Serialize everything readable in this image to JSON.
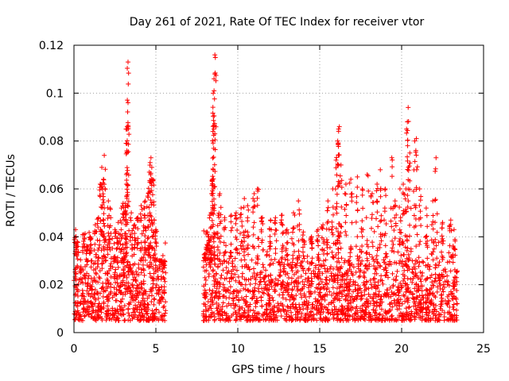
{
  "chart_data": {
    "type": "scatter",
    "title": "Day 261 of 2021, Rate Of TEC Index for receiver vtor",
    "xlabel": "GPS time / hours",
    "ylabel": "ROTI / TECUs",
    "xlim": [
      0,
      25
    ],
    "ylim": [
      0,
      0.12
    ],
    "x_ticks": [
      "0",
      "5",
      "10",
      "15",
      "20",
      "25"
    ],
    "y_ticks": [
      "0",
      "0.02",
      "0.04",
      "0.06",
      "0.08",
      "0.1",
      "0.12"
    ],
    "grid": true,
    "marker": "+",
    "series_color": "#ff0000",
    "data_gaps_hours": [
      [
        5.6,
        7.9
      ]
    ],
    "x_range_of_data": [
      0.0,
      23.4
    ],
    "points": [
      [
        0.1,
        0.043
      ],
      [
        0.2,
        0.038
      ],
      [
        0.6,
        0.041
      ],
      [
        0.8,
        0.036
      ],
      [
        1.0,
        0.04
      ],
      [
        1.3,
        0.045
      ],
      [
        1.5,
        0.048
      ],
      [
        1.6,
        0.062
      ],
      [
        1.7,
        0.069
      ],
      [
        1.8,
        0.064
      ],
      [
        1.75,
        0.06
      ],
      [
        1.85,
        0.074
      ],
      [
        2.1,
        0.055
      ],
      [
        2.2,
        0.052
      ],
      [
        2.5,
        0.043
      ],
      [
        2.7,
        0.046
      ],
      [
        2.9,
        0.052
      ],
      [
        3.0,
        0.054
      ],
      [
        3.1,
        0.05
      ],
      [
        3.2,
        0.062
      ],
      [
        3.2,
        0.066
      ],
      [
        3.25,
        0.085
      ],
      [
        3.25,
        0.086
      ],
      [
        3.3,
        0.096
      ],
      [
        3.3,
        0.113
      ],
      [
        3.5,
        0.05
      ],
      [
        3.7,
        0.045
      ],
      [
        3.9,
        0.048
      ],
      [
        4.1,
        0.053
      ],
      [
        4.3,
        0.052
      ],
      [
        4.35,
        0.055
      ],
      [
        4.5,
        0.057
      ],
      [
        4.6,
        0.067
      ],
      [
        4.65,
        0.071
      ],
      [
        4.7,
        0.073
      ],
      [
        4.75,
        0.069
      ],
      [
        4.8,
        0.064
      ],
      [
        4.9,
        0.047
      ],
      [
        5.0,
        0.043
      ],
      [
        5.3,
        0.03
      ],
      [
        5.5,
        0.028
      ],
      [
        8.0,
        0.033
      ],
      [
        8.1,
        0.042
      ],
      [
        8.2,
        0.04
      ],
      [
        8.3,
        0.049
      ],
      [
        8.4,
        0.058
      ],
      [
        8.45,
        0.064
      ],
      [
        8.5,
        0.068
      ],
      [
        8.5,
        0.1
      ],
      [
        8.55,
        0.101
      ],
      [
        8.55,
        0.106
      ],
      [
        8.6,
        0.108
      ],
      [
        8.6,
        0.116
      ],
      [
        8.8,
        0.049
      ],
      [
        8.9,
        0.058
      ],
      [
        9.2,
        0.048
      ],
      [
        9.6,
        0.049
      ],
      [
        9.9,
        0.05
      ],
      [
        10.2,
        0.052
      ],
      [
        10.4,
        0.056
      ],
      [
        10.6,
        0.053
      ],
      [
        11.0,
        0.058
      ],
      [
        11.2,
        0.06
      ],
      [
        11.5,
        0.048
      ],
      [
        12.0,
        0.047
      ],
      [
        12.3,
        0.048
      ],
      [
        12.7,
        0.049
      ],
      [
        13.0,
        0.043
      ],
      [
        13.4,
        0.05
      ],
      [
        13.7,
        0.055
      ],
      [
        14.0,
        0.042
      ],
      [
        14.5,
        0.04
      ],
      [
        14.9,
        0.043
      ],
      [
        15.2,
        0.045
      ],
      [
        15.5,
        0.055
      ],
      [
        15.8,
        0.06
      ],
      [
        16.0,
        0.072
      ],
      [
        16.1,
        0.08
      ],
      [
        16.15,
        0.085
      ],
      [
        16.2,
        0.086
      ],
      [
        16.3,
        0.07
      ],
      [
        16.6,
        0.062
      ],
      [
        16.9,
        0.064
      ],
      [
        17.3,
        0.065
      ],
      [
        17.6,
        0.06
      ],
      [
        17.9,
        0.066
      ],
      [
        18.2,
        0.058
      ],
      [
        18.5,
        0.062
      ],
      [
        18.7,
        0.068
      ],
      [
        19.0,
        0.06
      ],
      [
        19.4,
        0.073
      ],
      [
        19.6,
        0.055
      ],
      [
        19.9,
        0.06
      ],
      [
        20.1,
        0.062
      ],
      [
        20.3,
        0.085
      ],
      [
        20.35,
        0.088
      ],
      [
        20.4,
        0.094
      ],
      [
        20.5,
        0.075
      ],
      [
        20.8,
        0.08
      ],
      [
        20.9,
        0.081
      ],
      [
        21.1,
        0.06
      ],
      [
        21.5,
        0.052
      ],
      [
        21.9,
        0.055
      ],
      [
        22.1,
        0.073
      ],
      [
        22.5,
        0.046
      ],
      [
        23.0,
        0.047
      ],
      [
        23.2,
        0.043
      ]
    ],
    "noise_floor_density_band": [
      0.005,
      0.03
    ]
  }
}
